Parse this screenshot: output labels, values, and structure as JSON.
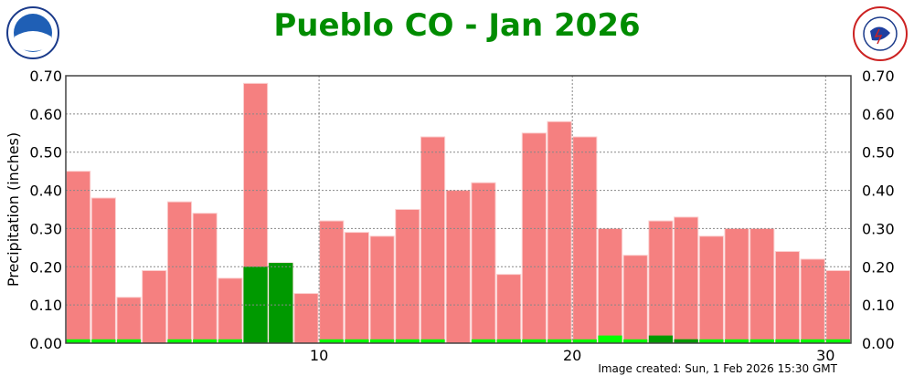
{
  "title": "Pueblo CO - Jan 2026",
  "image_created": "Image created: Sun, 1 Feb 2026 15:30 GMT",
  "logos": {
    "left": "NOAA",
    "right": "NATIONAL WEATHER SERVICE"
  },
  "chart_data": {
    "type": "bar",
    "title": "Pueblo CO - Jan 2026",
    "xlabel": "",
    "ylabel": "Precipitation (inches)",
    "ylim": [
      0,
      0.7
    ],
    "xlim": [
      0,
      31
    ],
    "grid": true,
    "x_ticks": [
      10,
      20,
      30
    ],
    "y_ticks": [
      "0.00",
      "0.10",
      "0.20",
      "0.30",
      "0.40",
      "0.50",
      "0.60",
      "0.70"
    ],
    "days": [
      1,
      2,
      3,
      4,
      5,
      6,
      7,
      8,
      9,
      10,
      11,
      12,
      13,
      14,
      15,
      16,
      17,
      18,
      19,
      20,
      21,
      22,
      23,
      24,
      25,
      26,
      27,
      28,
      29,
      30,
      31
    ],
    "series": [
      {
        "color": "#f58080",
        "values": [
          0.45,
          0.38,
          0.12,
          0.19,
          0.37,
          0.34,
          0.17,
          0.68,
          0.21,
          0.13,
          0.32,
          0.29,
          0.28,
          0.35,
          0.54,
          0.4,
          0.42,
          0.18,
          0.55,
          0.58,
          0.54,
          0.3,
          0.23,
          0.32,
          0.33,
          0.28,
          0.3,
          0.3,
          0.24,
          0.22,
          0.19
        ]
      },
      {
        "color": "#00ff00",
        "values": [
          0.01,
          0.01,
          0.01,
          0,
          0.01,
          0.01,
          0.01,
          0.01,
          0.01,
          0,
          0.01,
          0.01,
          0.01,
          0.01,
          0.01,
          0,
          0.01,
          0.01,
          0.01,
          0.01,
          0.01,
          0.02,
          0.01,
          0.01,
          0.01,
          0.01,
          0.01,
          0.01,
          0.01,
          0.01,
          0.01
        ]
      },
      {
        "color": "#009900",
        "values": [
          0,
          0,
          0,
          0,
          0,
          0,
          0,
          0.2,
          0.21,
          0,
          0,
          0,
          0,
          0,
          0,
          0,
          0,
          0,
          0,
          0,
          0,
          0,
          0,
          0.02,
          0.01,
          0,
          0,
          0,
          0,
          0,
          0
        ]
      }
    ]
  }
}
